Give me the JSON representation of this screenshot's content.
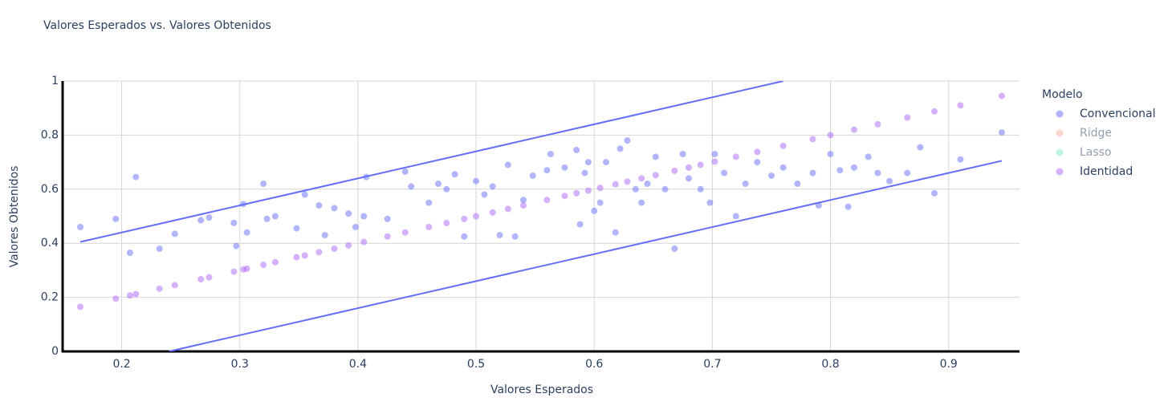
{
  "chart_data": {
    "type": "scatter",
    "title": "Valores Esperados vs. Valores Obtenidos",
    "x_label": "Valores Esperados",
    "y_label": "Valores Obtenidos",
    "legend_title": "Modelo",
    "legend_position": "right",
    "grid": true,
    "xlim": [
      0.15,
      0.96
    ],
    "ylim": [
      0,
      1
    ],
    "xticks": [
      0.2,
      0.3,
      0.4,
      0.5,
      0.6,
      0.7,
      0.8,
      0.9
    ],
    "yticks": [
      0,
      0.2,
      0.4,
      0.6,
      0.8,
      1
    ],
    "series": [
      {
        "name": "Convencional",
        "color": "#636efa",
        "mode": "markers",
        "x": [
          0.165,
          0.195,
          0.207,
          0.212,
          0.232,
          0.245,
          0.267,
          0.274,
          0.295,
          0.297,
          0.303,
          0.306,
          0.32,
          0.323,
          0.33,
          0.348,
          0.355,
          0.367,
          0.372,
          0.38,
          0.392,
          0.398,
          0.405,
          0.407,
          0.425,
          0.44,
          0.445,
          0.46,
          0.468,
          0.475,
          0.482,
          0.49,
          0.5,
          0.507,
          0.514,
          0.52,
          0.527,
          0.533,
          0.54,
          0.548,
          0.56,
          0.563,
          0.575,
          0.585,
          0.588,
          0.592,
          0.595,
          0.6,
          0.605,
          0.61,
          0.618,
          0.622,
          0.628,
          0.635,
          0.64,
          0.645,
          0.652,
          0.66,
          0.668,
          0.675,
          0.68,
          0.69,
          0.698,
          0.702,
          0.71,
          0.72,
          0.728,
          0.738,
          0.75,
          0.76,
          0.772,
          0.785,
          0.79,
          0.8,
          0.808,
          0.815,
          0.82,
          0.832,
          0.84,
          0.85,
          0.865,
          0.876,
          0.888,
          0.91,
          0.945
        ],
        "values": [
          0.46,
          0.49,
          0.365,
          0.645,
          0.38,
          0.435,
          0.485,
          0.495,
          0.475,
          0.39,
          0.545,
          0.44,
          0.62,
          0.49,
          0.5,
          0.455,
          0.58,
          0.54,
          0.43,
          0.53,
          0.51,
          0.46,
          0.5,
          0.645,
          0.49,
          0.665,
          0.61,
          0.55,
          0.62,
          0.6,
          0.655,
          0.425,
          0.63,
          0.58,
          0.61,
          0.43,
          0.69,
          0.425,
          0.56,
          0.65,
          0.67,
          0.73,
          0.68,
          0.745,
          0.47,
          0.66,
          0.7,
          0.52,
          0.55,
          0.7,
          0.44,
          0.75,
          0.78,
          0.6,
          0.55,
          0.62,
          0.72,
          0.6,
          0.38,
          0.73,
          0.64,
          0.6,
          0.55,
          0.73,
          0.66,
          0.5,
          0.62,
          0.7,
          0.65,
          0.68,
          0.62,
          0.66,
          0.54,
          0.73,
          0.67,
          0.535,
          0.68,
          0.72,
          0.66,
          0.63,
          0.66,
          0.755,
          0.585,
          0.71,
          0.81
        ]
      },
      {
        "name": "Ridge",
        "color": "#EF553B",
        "mode": "markers",
        "visible": "legendonly",
        "x": [],
        "values": []
      },
      {
        "name": "Lasso",
        "color": "#00cc96",
        "mode": "markers",
        "visible": "legendonly",
        "x": [],
        "values": []
      },
      {
        "name": "Identidad",
        "color": "#ab63fa",
        "mode": "markers",
        "x": [
          0.165,
          0.195,
          0.207,
          0.212,
          0.232,
          0.245,
          0.267,
          0.274,
          0.295,
          0.303,
          0.306,
          0.32,
          0.33,
          0.348,
          0.355,
          0.367,
          0.38,
          0.392,
          0.405,
          0.425,
          0.44,
          0.46,
          0.475,
          0.49,
          0.5,
          0.514,
          0.527,
          0.54,
          0.56,
          0.575,
          0.585,
          0.595,
          0.605,
          0.618,
          0.628,
          0.64,
          0.652,
          0.668,
          0.68,
          0.69,
          0.702,
          0.72,
          0.738,
          0.76,
          0.785,
          0.8,
          0.82,
          0.84,
          0.865,
          0.888,
          0.91,
          0.945
        ],
        "values": [
          0.165,
          0.195,
          0.207,
          0.212,
          0.232,
          0.245,
          0.267,
          0.274,
          0.295,
          0.303,
          0.306,
          0.32,
          0.33,
          0.348,
          0.355,
          0.367,
          0.38,
          0.392,
          0.405,
          0.425,
          0.44,
          0.46,
          0.475,
          0.49,
          0.5,
          0.514,
          0.527,
          0.54,
          0.56,
          0.575,
          0.585,
          0.595,
          0.605,
          0.618,
          0.628,
          0.64,
          0.652,
          0.668,
          0.68,
          0.69,
          0.702,
          0.72,
          0.738,
          0.76,
          0.785,
          0.8,
          0.82,
          0.84,
          0.865,
          0.888,
          0.91,
          0.945
        ]
      },
      {
        "color": "#636efa",
        "mode": "lines",
        "showlegend": false,
        "x": [
          0.165,
          0.76
        ],
        "values": [
          0.405,
          1
        ]
      },
      {
        "color": "#636efa",
        "mode": "lines",
        "showlegend": false,
        "x": [
          0.24,
          0.945
        ],
        "values": [
          0,
          0.705
        ]
      }
    ]
  }
}
